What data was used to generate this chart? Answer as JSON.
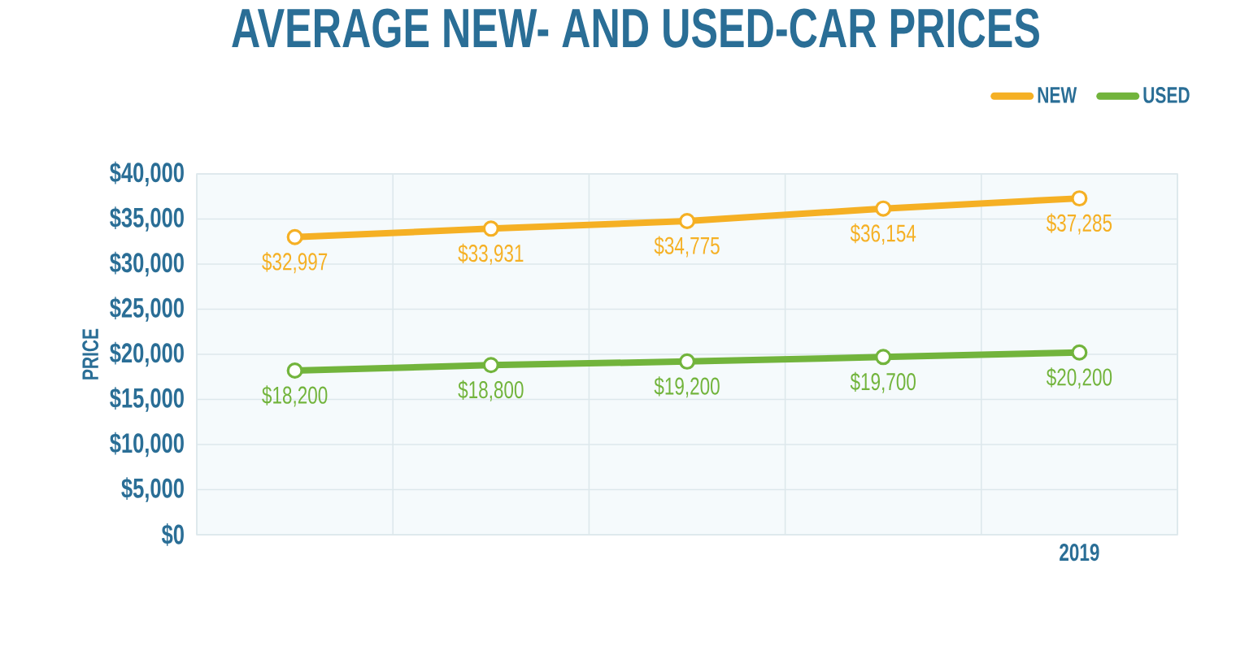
{
  "chart_data": {
    "type": "line",
    "title": "AVERAGE NEW- AND USED-CAR PRICES",
    "ylabel": "PRICE",
    "categories": [
      null,
      null,
      null,
      null,
      "2019"
    ],
    "series": [
      {
        "name": "NEW",
        "color": "#f5b024",
        "values": [
          32997,
          33931,
          34775,
          36154,
          37285
        ],
        "value_labels": [
          "$32,997",
          "$33,931",
          "$34,775",
          "$36,154",
          "$37,285"
        ]
      },
      {
        "name": "USED",
        "color": "#72b43c",
        "values": [
          18200,
          18800,
          19200,
          19700,
          20200
        ],
        "value_labels": [
          "$18,200",
          "$18,800",
          "$19,200",
          "$19,700",
          "$20,200"
        ]
      }
    ],
    "ylim": [
      0,
      40000
    ],
    "yticks": [
      {
        "value": 0,
        "label": "$0"
      },
      {
        "value": 5000,
        "label": "$5,000"
      },
      {
        "value": 10000,
        "label": "$10,000"
      },
      {
        "value": 15000,
        "label": "$15,000"
      },
      {
        "value": 20000,
        "label": "$20,000"
      },
      {
        "value": 25000,
        "label": "$25,000"
      },
      {
        "value": 30000,
        "label": "$30,000"
      },
      {
        "value": 35000,
        "label": "$35,000"
      },
      {
        "value": 40000,
        "label": "$40,000"
      }
    ],
    "grid": true,
    "legend": "top right",
    "marker": "circle",
    "line_style": "solid"
  }
}
